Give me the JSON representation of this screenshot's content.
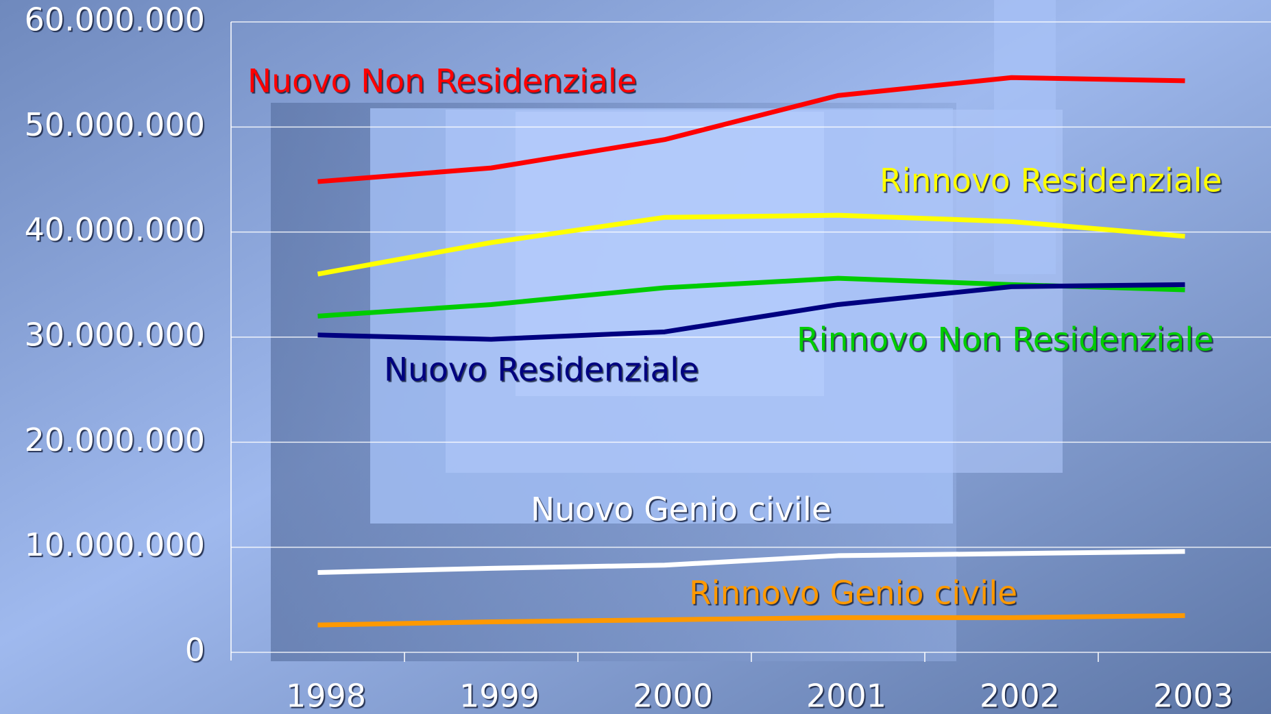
{
  "chart_data": {
    "type": "line",
    "categories": [
      "1998",
      "1999",
      "2000",
      "2001",
      "2002",
      "2003"
    ],
    "ylim": [
      0,
      60000000
    ],
    "yticks": [
      0,
      {
        "value": 10000000,
        "label": "10.000.000"
      },
      {
        "value": 20000000,
        "label": "20.000.000"
      },
      {
        "value": 30000000,
        "label": "30.000.000"
      },
      {
        "value": 40000000,
        "label": "40.000.000"
      },
      {
        "value": 50000000,
        "label": "50.000.000"
      },
      {
        "value": 60000000,
        "label": "60.000.000"
      }
    ],
    "grid": true,
    "series": [
      {
        "name": "Nuovo Non Residenziale",
        "color": "#ff0000",
        "values": [
          44800000,
          46100000,
          48800000,
          53000000,
          54700000,
          54400000
        ]
      },
      {
        "name": "Rinnovo Residenziale",
        "color": "#ffff00",
        "values": [
          36000000,
          39000000,
          41400000,
          41600000,
          41000000,
          39600000
        ]
      },
      {
        "name": "Rinnovo Non Residenziale",
        "color": "#00cc00",
        "values": [
          32000000,
          33100000,
          34700000,
          35600000,
          35000000,
          34500000
        ]
      },
      {
        "name": "Nuovo Residenziale",
        "color": "#000080",
        "values": [
          30200000,
          29800000,
          30500000,
          33100000,
          34800000,
          35000000
        ]
      },
      {
        "name": "Nuovo Genio civile",
        "color": "#ffffff",
        "values": [
          7600000,
          8000000,
          8300000,
          9200000,
          9400000,
          9600000
        ]
      },
      {
        "name": "Rinnovo Genio civile",
        "color": "#ff9900",
        "values": [
          2600000,
          2900000,
          3100000,
          3300000,
          3300000,
          3500000
        ]
      }
    ]
  }
}
